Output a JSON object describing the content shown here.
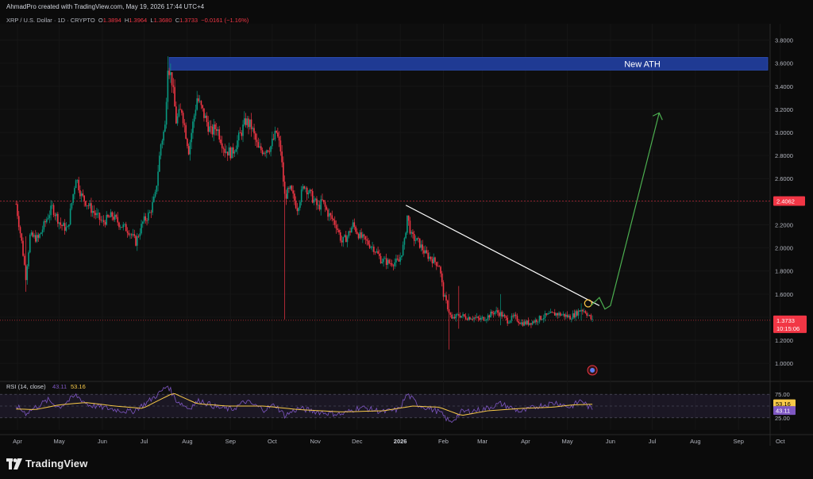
{
  "header": {
    "attribution": "AhmadPro created with TradingView.com, May 19, 2026 17:44 UTC+4"
  },
  "symbol": {
    "name": "XRP / U.S. Dollar · 1D · CRYPTO",
    "o_label": "O",
    "o": "1.3894",
    "h_label": "H",
    "h": "1.3964",
    "l_label": "L",
    "l": "1.3680",
    "c_label": "C",
    "c": "1.3733",
    "change": "−0.0161 (−1.16%)"
  },
  "chart_data": [
    {
      "type": "candlestick",
      "title": "XRP / U.S. Dollar · 1D · CRYPTO",
      "x_tick_labels": [
        "Apr",
        "May",
        "Jun",
        "Jul",
        "Aug",
        "Sep",
        "Oct",
        "Nov",
        "Dec",
        "2026",
        "Feb",
        "Mar",
        "Apr",
        "May",
        "Jun",
        "Jul",
        "Aug",
        "Sep",
        "Oct"
      ],
      "y_tick_labels": [
        "3.8000",
        "3.6000",
        "3.4000",
        "3.2000",
        "3.0000",
        "2.8000",
        "2.6000",
        "2.4000",
        "2.2000",
        "2.0000",
        "1.8000",
        "1.6000",
        "1.4000",
        "1.2000",
        "1.0000"
      ],
      "ylim": [
        0.85,
        3.9
      ],
      "up_color": "#089981",
      "down_color": "#f23645",
      "price_path": [
        [
          "2025-03-31",
          2.38
        ],
        [
          "2025-04-04",
          2.05
        ],
        [
          "2025-04-07",
          1.75
        ],
        [
          "2025-04-10",
          2.1
        ],
        [
          "2025-04-16",
          2.08
        ],
        [
          "2025-04-23",
          2.28
        ],
        [
          "2025-04-26",
          2.35
        ],
        [
          "2025-05-02",
          2.2
        ],
        [
          "2025-05-07",
          2.16
        ],
        [
          "2025-05-13",
          2.62
        ],
        [
          "2025-05-17",
          2.45
        ],
        [
          "2025-05-25",
          2.32
        ],
        [
          "2025-06-01",
          2.22
        ],
        [
          "2025-06-08",
          2.28
        ],
        [
          "2025-06-14",
          2.2
        ],
        [
          "2025-06-20",
          2.15
        ],
        [
          "2025-06-25",
          2.05
        ],
        [
          "2025-06-30",
          2.22
        ],
        [
          "2025-07-05",
          2.3
        ],
        [
          "2025-07-09",
          2.45
        ],
        [
          "2025-07-13",
          2.9
        ],
        [
          "2025-07-16",
          3.05
        ],
        [
          "2025-07-18",
          3.6
        ],
        [
          "2025-07-21",
          3.45
        ],
        [
          "2025-07-24",
          3.1
        ],
        [
          "2025-07-28",
          3.2
        ],
        [
          "2025-08-02",
          2.85
        ],
        [
          "2025-08-08",
          3.3
        ],
        [
          "2025-08-13",
          3.15
        ],
        [
          "2025-08-18",
          3.0
        ],
        [
          "2025-08-22",
          3.05
        ],
        [
          "2025-08-28",
          2.85
        ],
        [
          "2025-09-02",
          2.82
        ],
        [
          "2025-09-07",
          2.95
        ],
        [
          "2025-09-12",
          3.1
        ],
        [
          "2025-09-16",
          3.05
        ],
        [
          "2025-09-21",
          2.85
        ],
        [
          "2025-09-25",
          2.85
        ],
        [
          "2025-09-30",
          2.88
        ],
        [
          "2025-10-04",
          3.0
        ],
        [
          "2025-10-07",
          2.85
        ],
        [
          "2025-10-10",
          2.45
        ],
        [
          "2025-10-14",
          2.5
        ],
        [
          "2025-10-19",
          2.35
        ],
        [
          "2025-10-24",
          2.55
        ],
        [
          "2025-10-29",
          2.45
        ],
        [
          "2025-11-03",
          2.35
        ],
        [
          "2025-11-06",
          2.4
        ],
        [
          "2025-11-10",
          2.3
        ],
        [
          "2025-11-16",
          2.2
        ],
        [
          "2025-11-20",
          2.05
        ],
        [
          "2025-11-24",
          2.1
        ],
        [
          "2025-11-28",
          2.2
        ],
        [
          "2025-12-03",
          2.1
        ],
        [
          "2025-12-08",
          2.05
        ],
        [
          "2025-12-13",
          2.0
        ],
        [
          "2025-12-18",
          1.9
        ],
        [
          "2025-12-24",
          1.87
        ],
        [
          "2025-12-31",
          1.88
        ],
        [
          "2026-01-04",
          2.05
        ],
        [
          "2026-01-06",
          2.28
        ],
        [
          "2026-01-09",
          2.1
        ],
        [
          "2026-01-14",
          2.05
        ],
        [
          "2026-01-19",
          1.95
        ],
        [
          "2026-01-24",
          1.9
        ],
        [
          "2026-01-29",
          1.85
        ],
        [
          "2026-02-01",
          1.6
        ],
        [
          "2026-02-05",
          1.45
        ],
        [
          "2026-02-07",
          1.38
        ],
        [
          "2026-02-12",
          1.42
        ],
        [
          "2026-02-17",
          1.4
        ],
        [
          "2026-02-22",
          1.4
        ],
        [
          "2026-02-27",
          1.38
        ],
        [
          "2026-03-04",
          1.4
        ],
        [
          "2026-03-10",
          1.45
        ],
        [
          "2026-03-14",
          1.43
        ],
        [
          "2026-03-19",
          1.37
        ],
        [
          "2026-03-24",
          1.4
        ],
        [
          "2026-03-29",
          1.35
        ],
        [
          "2026-04-03",
          1.35
        ],
        [
          "2026-04-08",
          1.37
        ],
        [
          "2026-04-13",
          1.4
        ],
        [
          "2026-04-18",
          1.42
        ],
        [
          "2026-04-23",
          1.43
        ],
        [
          "2026-04-28",
          1.42
        ],
        [
          "2026-05-03",
          1.4
        ],
        [
          "2026-05-07",
          1.43
        ],
        [
          "2026-05-11",
          1.47
        ],
        [
          "2026-05-14",
          1.45
        ],
        [
          "2026-05-19",
          1.37
        ]
      ],
      "wick_events": [
        [
          "2025-04-07",
          1.62,
          2.1
        ],
        [
          "2025-07-18",
          3.2,
          3.66
        ],
        [
          "2025-10-10",
          1.38,
          2.6
        ],
        [
          "2026-02-05",
          1.12,
          1.6
        ],
        [
          "2026-02-12",
          1.3,
          1.67
        ],
        [
          "2026-03-14",
          1.33,
          1.6
        ],
        [
          "2026-05-11",
          1.37,
          1.52
        ]
      ],
      "last_price_label": "1.3733",
      "countdown_label": "10:15:06",
      "level_line_label": "2.4062",
      "level_line_value": 2.4062,
      "last_price_value": 1.3733,
      "annotations": [
        {
          "type": "rectangle",
          "text": "New ATH",
          "from": "2025-07-19",
          "to": "2026-09-22",
          "y_low": 3.54,
          "y_high": 3.65,
          "color": "#1f3a93"
        },
        {
          "type": "trendline",
          "from": [
            "2026-01-05",
            2.37
          ],
          "to": [
            "2026-05-24",
            1.5
          ],
          "color": "#ffffff"
        },
        {
          "type": "circle",
          "at": [
            "2026-05-16",
            1.52
          ],
          "color": "#f6c343"
        },
        {
          "type": "projection_path",
          "points": [
            [
              "2026-05-18",
              1.5
            ],
            [
              "2026-05-24",
              1.57
            ],
            [
              "2026-05-28",
              1.47
            ],
            [
              "2026-06-01",
              1.5
            ],
            [
              "2026-07-06",
              3.17
            ]
          ],
          "arrow_tip": [
            "2026-07-06",
            3.17
          ],
          "color": "#4caf50"
        }
      ]
    },
    {
      "type": "line",
      "title": "RSI (14, close)",
      "legend": [
        "43.11",
        "53.16"
      ],
      "y_tick_labels": [
        "75.00",
        "25.00"
      ],
      "ylim": [
        15,
        85
      ],
      "band": [
        30,
        70
      ],
      "series": [
        {
          "name": "RSI",
          "color": "#7e57c2",
          "last_value": "43.11",
          "points": [
            [
              "2025-03-31",
              50
            ],
            [
              "2025-04-07",
              38
            ],
            [
              "2025-04-14",
              48
            ],
            [
              "2025-04-23",
              60
            ],
            [
              "2025-05-01",
              48
            ],
            [
              "2025-05-13",
              68
            ],
            [
              "2025-05-22",
              52
            ],
            [
              "2025-06-05",
              46
            ],
            [
              "2025-06-22",
              40
            ],
            [
              "2025-07-03",
              56
            ],
            [
              "2025-07-12",
              72
            ],
            [
              "2025-07-18",
              85
            ],
            [
              "2025-07-24",
              60
            ],
            [
              "2025-08-02",
              46
            ],
            [
              "2025-08-10",
              60
            ],
            [
              "2025-08-22",
              48
            ],
            [
              "2025-09-02",
              44
            ],
            [
              "2025-09-12",
              58
            ],
            [
              "2025-09-25",
              44
            ],
            [
              "2025-10-03",
              52
            ],
            [
              "2025-10-10",
              34
            ],
            [
              "2025-10-20",
              46
            ],
            [
              "2025-11-03",
              40
            ],
            [
              "2025-11-20",
              36
            ],
            [
              "2025-12-03",
              48
            ],
            [
              "2025-12-20",
              40
            ],
            [
              "2025-12-31",
              44
            ],
            [
              "2026-01-06",
              70
            ],
            [
              "2026-01-14",
              52
            ],
            [
              "2026-01-29",
              40
            ],
            [
              "2026-02-06",
              22
            ],
            [
              "2026-02-14",
              40
            ],
            [
              "2026-03-01",
              44
            ],
            [
              "2026-03-14",
              54
            ],
            [
              "2026-03-29",
              40
            ],
            [
              "2026-04-10",
              50
            ],
            [
              "2026-04-23",
              56
            ],
            [
              "2026-05-03",
              48
            ],
            [
              "2026-05-11",
              60
            ],
            [
              "2026-05-19",
              43
            ]
          ]
        },
        {
          "name": "RSI-based MA",
          "color": "#f7c948",
          "last_value": "53.16",
          "points": [
            [
              "2025-03-31",
              45
            ],
            [
              "2025-04-14",
              44
            ],
            [
              "2025-05-01",
              52
            ],
            [
              "2025-05-20",
              56
            ],
            [
              "2025-06-10",
              50
            ],
            [
              "2025-06-30",
              46
            ],
            [
              "2025-07-10",
              58
            ],
            [
              "2025-07-22",
              72
            ],
            [
              "2025-08-08",
              54
            ],
            [
              "2025-08-30",
              50
            ],
            [
              "2025-09-25",
              50
            ],
            [
              "2025-10-20",
              44
            ],
            [
              "2025-11-20",
              40
            ],
            [
              "2025-12-20",
              42
            ],
            [
              "2026-01-10",
              50
            ],
            [
              "2026-01-29",
              48
            ],
            [
              "2026-02-14",
              34
            ],
            [
              "2026-03-05",
              42
            ],
            [
              "2026-03-29",
              46
            ],
            [
              "2026-04-20",
              48
            ],
            [
              "2026-05-05",
              52
            ],
            [
              "2026-05-19",
              53
            ]
          ]
        }
      ]
    }
  ],
  "branding": {
    "logo_name": "TradingView"
  }
}
